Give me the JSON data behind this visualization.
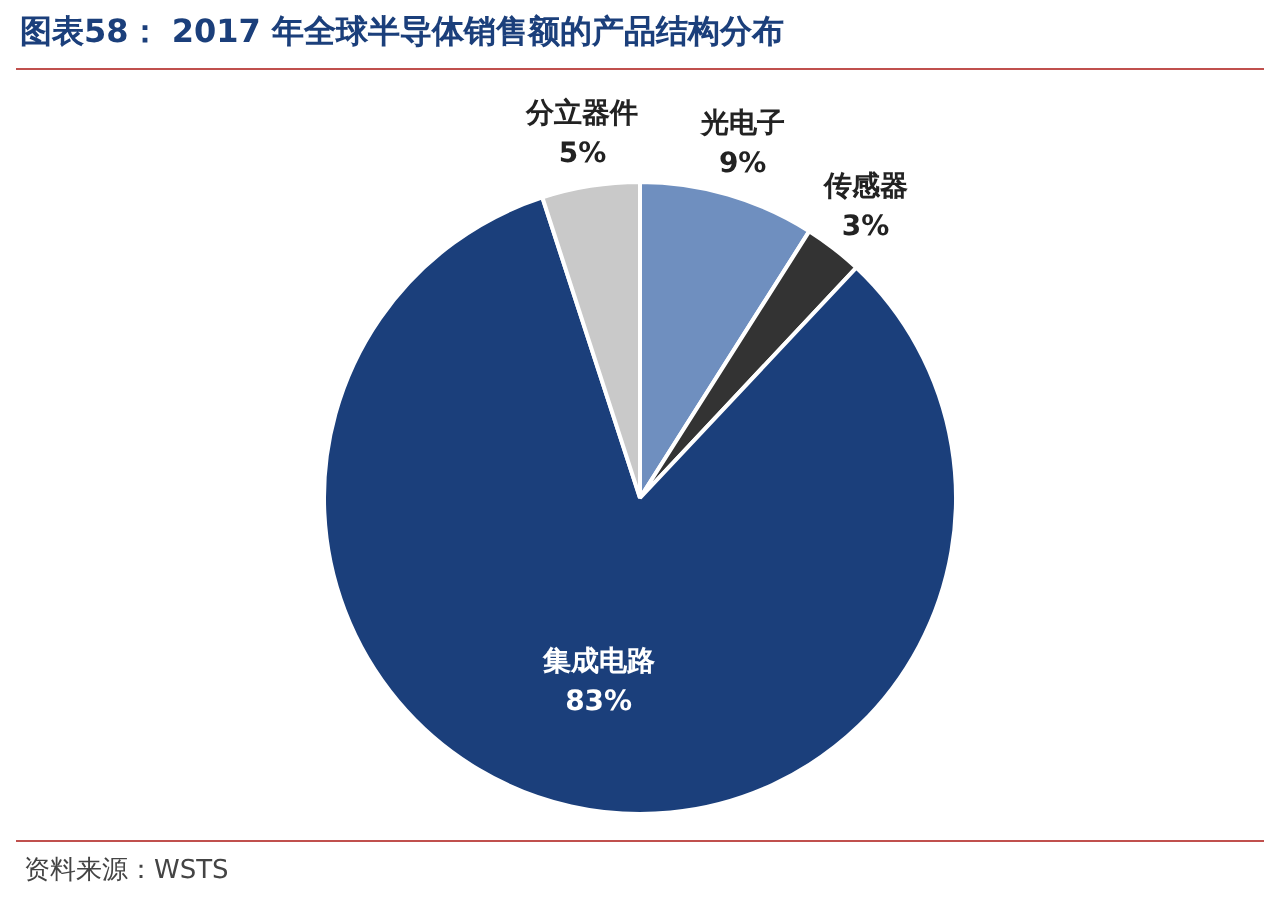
{
  "chart_data": {
    "type": "pie",
    "title": "图表58： 2017 年全球半导体销售额的产品结构分布",
    "categories": [
      "光电子",
      "传感器",
      "集成电路",
      "分立器件"
    ],
    "values": [
      9,
      3,
      83,
      5
    ],
    "value_labels": [
      "9%",
      "3%",
      "83%",
      "5%"
    ],
    "colors": [
      "#6f8fbf",
      "#333333",
      "#1b3f7b",
      "#c9c9c9"
    ],
    "legend": false,
    "annotations": [
      "资料来源：WSTS"
    ]
  }
}
